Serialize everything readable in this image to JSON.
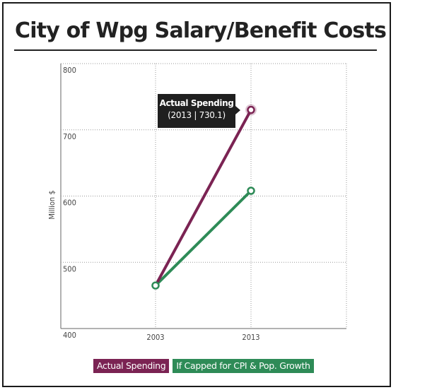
{
  "title": "City of Wpg Salary/Benefit Costs",
  "colors": {
    "actual": "#7b2353",
    "capped": "#2e8b57"
  },
  "tooltip": {
    "series": "Actual Spending",
    "detail": "(2013 | 730.1)"
  },
  "chart_data": {
    "type": "line",
    "ylabel": "Million $",
    "xlabel": "",
    "categories": [
      "2003",
      "2013"
    ],
    "ylim": [
      400,
      800
    ],
    "yticks": [
      "400",
      "500",
      "600",
      "700",
      "800"
    ],
    "grid": true,
    "legend_position": "bottom",
    "series": [
      {
        "name": "Actual Spending",
        "values": [
          465,
          730.1
        ],
        "color": "#7b2353"
      },
      {
        "name": "If Capped for CPI & Pop. Growth",
        "values": [
          465,
          608
        ],
        "color": "#2e8b57"
      }
    ]
  }
}
